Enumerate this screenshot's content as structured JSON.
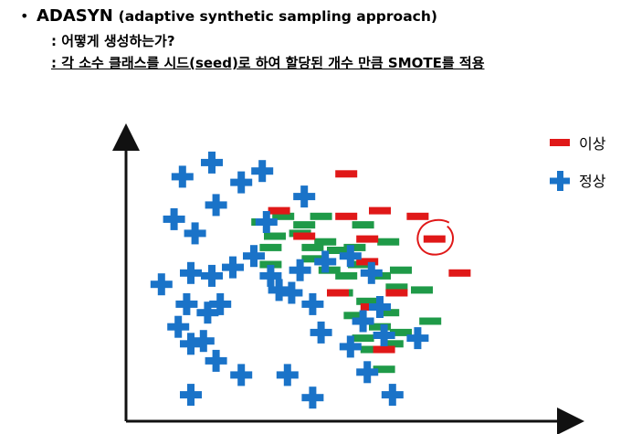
{
  "header": {
    "bullet": "•",
    "title": "ADASYN",
    "title_paren": "(adaptive synthetic sampling approach)",
    "line1": ": 어떻게 생성하는가?",
    "line2": ": 각 소수 클래스를 시드(seed)로 하여 할당된 개수 만큼 SMOTE를 적용"
  },
  "legend": {
    "minority_label": "이상",
    "majority_label": "정상"
  },
  "colors": {
    "minority": "#e01818",
    "majority": "#1a73c8",
    "synthetic": "#1f9a48",
    "annotation": "#e01818",
    "axis": "#111111"
  },
  "chart_data": {
    "type": "scatter",
    "title": "",
    "xlabel": "",
    "ylabel": "",
    "xlim": [
      0,
      100
    ],
    "ylim": [
      0,
      100
    ],
    "series": [
      {
        "name": "이상",
        "marker": "dash",
        "points": [
          [
            52,
            87
          ],
          [
            60,
            74
          ],
          [
            52,
            72
          ],
          [
            69,
            72
          ],
          [
            73,
            64
          ],
          [
            36,
            74
          ],
          [
            57,
            64
          ],
          [
            42,
            65
          ],
          [
            57,
            56
          ],
          [
            64,
            45
          ],
          [
            79,
            52
          ],
          [
            50,
            45
          ],
          [
            58,
            40
          ],
          [
            61,
            25
          ]
        ]
      },
      {
        "name": "",
        "marker": "dash-synthetic",
        "points": [
          [
            32,
            70
          ],
          [
            37,
            72
          ],
          [
            42,
            69
          ],
          [
            46,
            72
          ],
          [
            35,
            65
          ],
          [
            41,
            66
          ],
          [
            47,
            63
          ],
          [
            56,
            69
          ],
          [
            54,
            61
          ],
          [
            62,
            63
          ],
          [
            34,
            61
          ],
          [
            44,
            61
          ],
          [
            50,
            60
          ],
          [
            34,
            55
          ],
          [
            44,
            57
          ],
          [
            48,
            53
          ],
          [
            52,
            51
          ],
          [
            55,
            55
          ],
          [
            60,
            51
          ],
          [
            65,
            53
          ],
          [
            51,
            45
          ],
          [
            57,
            42
          ],
          [
            62,
            38
          ],
          [
            64,
            47
          ],
          [
            70,
            46
          ],
          [
            54,
            37
          ],
          [
            60,
            33
          ],
          [
            65,
            31
          ],
          [
            72,
            35
          ],
          [
            56,
            29
          ],
          [
            58,
            25
          ],
          [
            63,
            27
          ],
          [
            61,
            18
          ]
        ]
      },
      {
        "name": "정상",
        "marker": "plus",
        "points": [
          [
            20,
            91
          ],
          [
            13,
            86
          ],
          [
            32,
            88
          ],
          [
            27,
            84
          ],
          [
            42,
            79
          ],
          [
            21,
            76
          ],
          [
            11,
            71
          ],
          [
            16,
            66
          ],
          [
            33,
            70
          ],
          [
            30,
            58
          ],
          [
            8,
            48
          ],
          [
            15,
            52
          ],
          [
            20,
            51
          ],
          [
            25,
            54
          ],
          [
            34,
            51
          ],
          [
            14,
            41
          ],
          [
            19,
            38
          ],
          [
            22,
            41
          ],
          [
            41,
            53
          ],
          [
            47,
            56
          ],
          [
            53,
            58
          ],
          [
            58,
            52
          ],
          [
            12,
            33
          ],
          [
            15,
            27
          ],
          [
            18,
            28
          ],
          [
            36,
            46
          ],
          [
            39,
            45
          ],
          [
            44,
            41
          ],
          [
            60,
            40
          ],
          [
            46,
            31
          ],
          [
            53,
            26
          ],
          [
            56,
            35
          ],
          [
            61,
            30
          ],
          [
            69,
            29
          ],
          [
            21,
            21
          ],
          [
            27,
            16
          ],
          [
            38,
            16
          ],
          [
            57,
            17
          ],
          [
            15,
            9
          ],
          [
            44,
            8
          ],
          [
            63,
            9
          ]
        ]
      }
    ],
    "annotation": {
      "shape": "circle",
      "target_point": [
        73,
        64
      ]
    }
  }
}
